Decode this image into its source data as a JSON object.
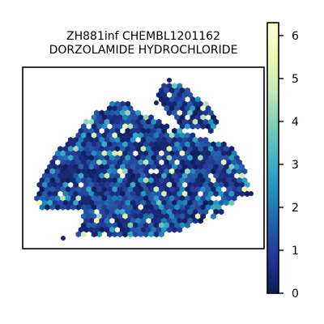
{
  "chart_data": {
    "type": "heatmap",
    "subtype": "hexbin",
    "title_lines": [
      "ZH881inf CHEMBL1201162",
      "DORZOLAMIDE HYDROCHLORIDE"
    ],
    "xlabel": "",
    "ylabel": "",
    "axes_ticks_visible": false,
    "grid": false,
    "colorbar": {
      "location": "right",
      "colormap": "YlGnBu_r",
      "range": [
        0,
        6.3
      ],
      "ticks": [
        0,
        1,
        2,
        3,
        4,
        5,
        6
      ],
      "tick_labels": [
        "0",
        "1",
        "2",
        "3",
        "4",
        "5",
        "6"
      ],
      "colors": [
        "#081d58",
        "#253494",
        "#225ea8",
        "#1d91c0",
        "#41b6c4",
        "#7fcdbb",
        "#c7e9b4",
        "#edf8b1",
        "#ffffd9"
      ]
    },
    "typical_value": 1.2,
    "max_value": 6.0
  }
}
